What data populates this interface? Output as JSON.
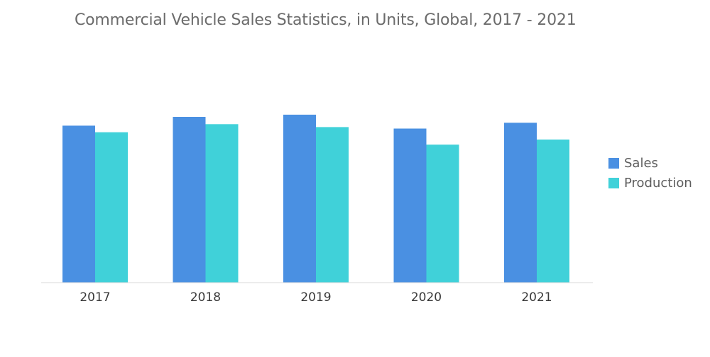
{
  "chart_data": {
    "type": "bar",
    "title": "Commercial Vehicle Sales Statistics, in Units, Global, 2017 - 2021",
    "xlabel": "",
    "ylabel": "",
    "categories": [
      "2017",
      "2018",
      "2019",
      "2020",
      "2021"
    ],
    "series": [
      {
        "name": "Sales",
        "color": "#4a90e2",
        "values": [
          215,
          227,
          230,
          211,
          219
        ]
      },
      {
        "name": "Production",
        "color": "#40d1d9",
        "values": [
          206,
          217,
          213,
          189,
          196
        ]
      }
    ],
    "ylim": [
      0,
      260
    ],
    "grid": false,
    "legend_position": "right"
  }
}
